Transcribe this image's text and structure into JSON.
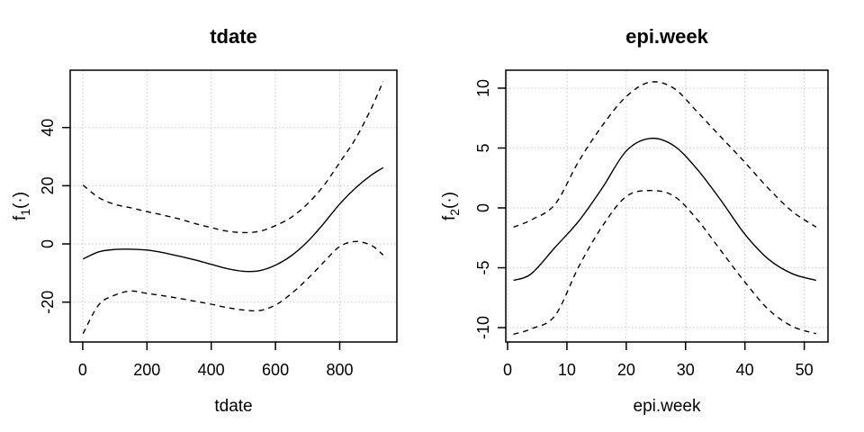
{
  "colors": {
    "foreground": "#000000",
    "background": "#ffffff",
    "grid": "#d3d3d3"
  },
  "chart_data": [
    {
      "type": "line",
      "title": "tdate",
      "xlabel": "tdate",
      "ylabel": {
        "base": "f",
        "sub": "1",
        "rest": "(·)"
      },
      "xlim": [
        -39,
        978
      ],
      "ylim": [
        -33.7,
        59.7
      ],
      "xticks": [
        0,
        200,
        400,
        600,
        800
      ],
      "yticks": [
        -20,
        0,
        20,
        40
      ],
      "grid": true,
      "legend": "none",
      "x": [
        1,
        50,
        100,
        150,
        200,
        250,
        300,
        350,
        400,
        450,
        500,
        550,
        600,
        650,
        700,
        750,
        800,
        850,
        900,
        935
      ],
      "series": [
        {
          "name": "fit",
          "style": "solid",
          "y": [
            -5.2,
            -2.7,
            -1.9,
            -1.8,
            -2.1,
            -3.0,
            -4.2,
            -5.5,
            -7.0,
            -8.5,
            -9.4,
            -9.2,
            -7.3,
            -4.0,
            0.8,
            7.0,
            13.7,
            19.3,
            23.8,
            26.2
          ]
        },
        {
          "name": "upper_95ci",
          "style": "dashed",
          "y": [
            20.2,
            15.9,
            13.6,
            12.4,
            11.1,
            9.9,
            8.6,
            7.0,
            5.6,
            4.4,
            3.9,
            4.3,
            6.3,
            9.2,
            13.8,
            20.0,
            28.0,
            36.3,
            47.0,
            55.9
          ]
        },
        {
          "name": "lower_95ci",
          "style": "dashed",
          "y": [
            -30.8,
            -20.9,
            -17.6,
            -16.2,
            -17.0,
            -17.8,
            -18.7,
            -19.7,
            -20.7,
            -21.9,
            -22.7,
            -22.9,
            -21.0,
            -17.0,
            -12.0,
            -6.3,
            -0.9,
            0.85,
            -0.6,
            -3.8
          ]
        }
      ]
    },
    {
      "type": "line",
      "title": "epi.week",
      "xlabel": "epi.week",
      "ylabel": {
        "base": "f",
        "sub": "2",
        "rest": "(·)"
      },
      "xlim": [
        -0.3,
        54
      ],
      "ylim": [
        -11.2,
        11.5
      ],
      "xticks": [
        0,
        10,
        20,
        30,
        40,
        50
      ],
      "yticks": [
        -10,
        -5,
        0,
        5,
        10
      ],
      "grid": true,
      "legend": "none",
      "x": [
        1,
        4,
        8,
        12,
        16,
        20,
        24,
        28,
        32,
        36,
        40,
        44,
        48,
        52
      ],
      "series": [
        {
          "name": "fit",
          "style": "solid",
          "y": [
            -6.05,
            -5.5,
            -3.3,
            -1.1,
            1.7,
            4.75,
            5.8,
            5.2,
            3.2,
            0.6,
            -2.2,
            -4.3,
            -5.5,
            -6.05
          ]
        },
        {
          "name": "upper_95ci",
          "style": "dashed",
          "y": [
            -1.6,
            -1.0,
            0.3,
            3.9,
            6.9,
            9.3,
            10.5,
            10.0,
            8.0,
            5.9,
            3.8,
            1.6,
            -0.3,
            -1.6
          ]
        },
        {
          "name": "lower_95ci",
          "style": "dashed",
          "y": [
            -10.55,
            -10.1,
            -9.0,
            -4.9,
            -1.5,
            0.95,
            1.45,
            1.0,
            -1.0,
            -3.6,
            -6.2,
            -8.5,
            -9.9,
            -10.5
          ]
        }
      ]
    }
  ]
}
